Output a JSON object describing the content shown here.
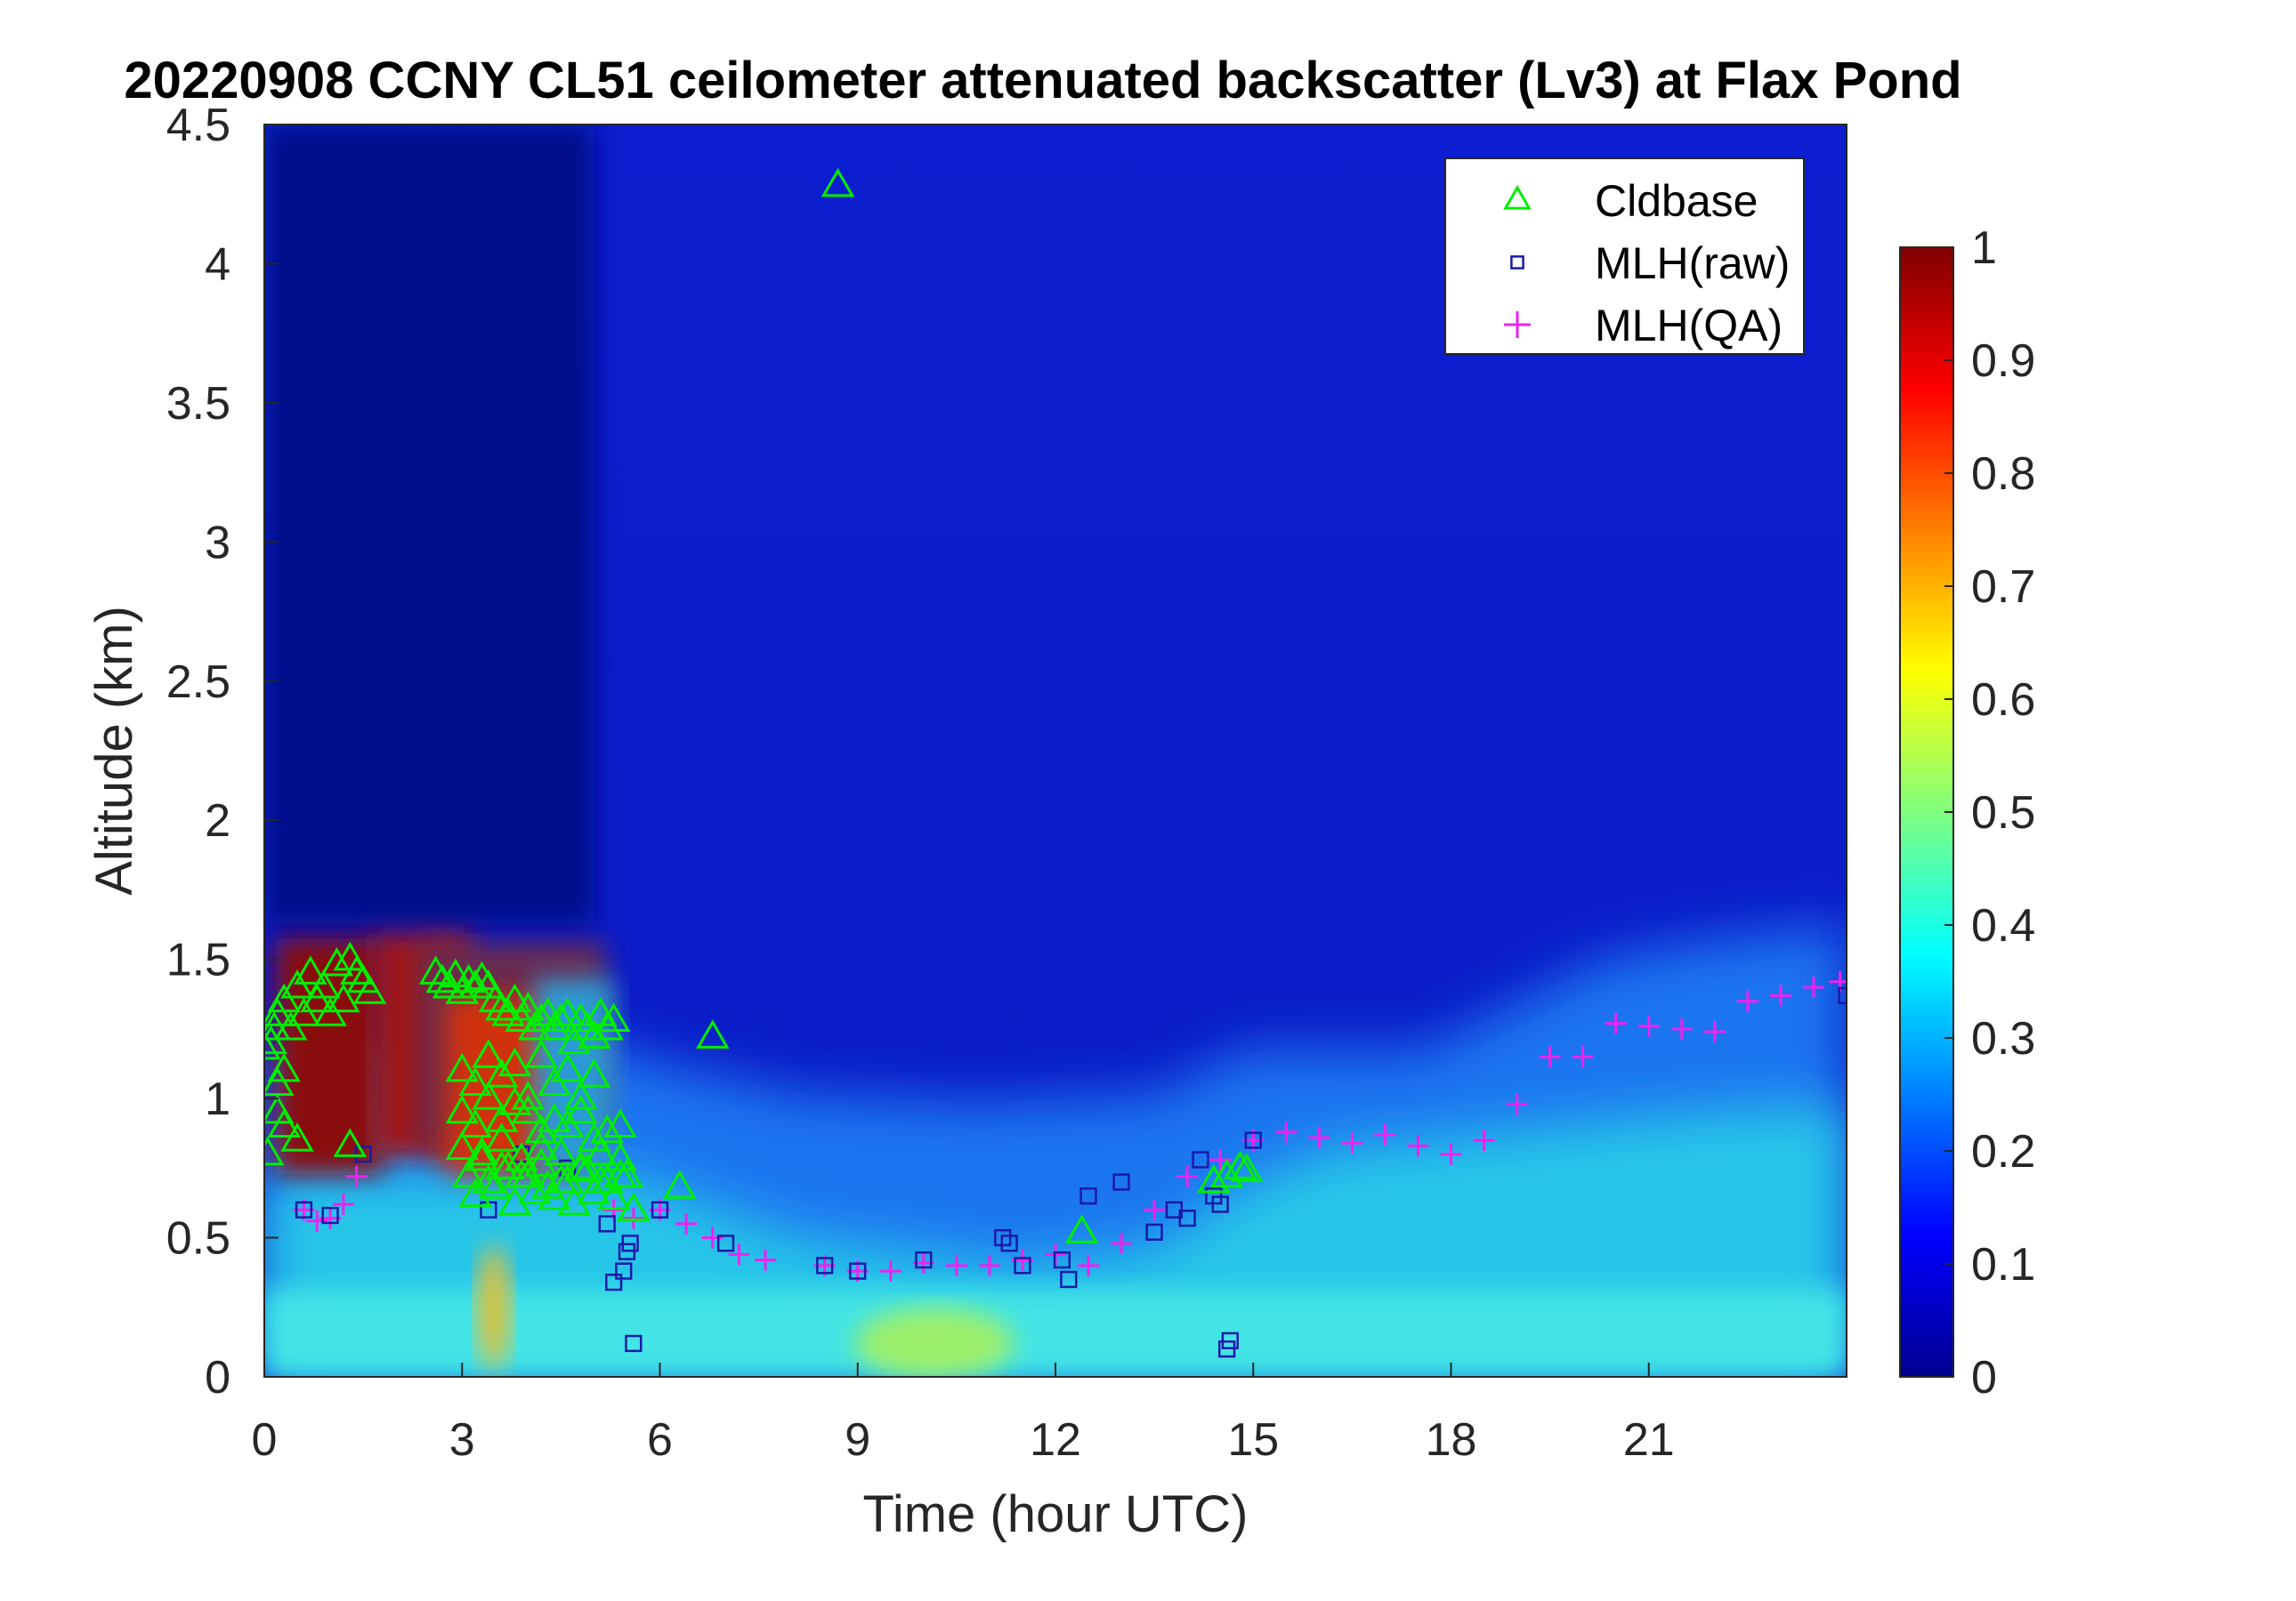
{
  "chart_data": {
    "type": "heatmap",
    "title": "20220908 CCNY CL51 ceilometer attenuated backscatter (Lv3) at Flax Pond",
    "xlabel": "Time (hour UTC)",
    "ylabel": "Altitude (km)",
    "xlim": [
      0,
      24
    ],
    "ylim": [
      0,
      4.5
    ],
    "xticks": [
      0,
      3,
      6,
      9,
      12,
      15,
      18,
      21
    ],
    "xtick_labels": [
      "0",
      "3",
      "6",
      "9",
      "12",
      "15",
      "18",
      "21"
    ],
    "yticks": [
      0,
      0.5,
      1,
      1.5,
      2,
      2.5,
      3,
      3.5,
      4,
      4.5
    ],
    "ytick_labels": [
      "0",
      "0.5",
      "1",
      "1.5",
      "2",
      "2.5",
      "3",
      "3.5",
      "4",
      "4.5"
    ],
    "colorbar": {
      "colormap": "jet",
      "range": [
        0,
        1
      ],
      "ticks": [
        0,
        0.1,
        0.2,
        0.3,
        0.4,
        0.5,
        0.6,
        0.7,
        0.8,
        0.9,
        1
      ],
      "tick_labels": [
        "0",
        "0.1",
        "0.2",
        "0.3",
        "0.4",
        "0.5",
        "0.6",
        "0.7",
        "0.8",
        "0.9",
        "1"
      ]
    },
    "legend": {
      "placement": "top-right",
      "entries": [
        {
          "label": "Cldbase",
          "marker": "triangle",
          "color": "#00ee00"
        },
        {
          "label": "MLH(raw)",
          "marker": "square",
          "color": "#1a1aa8"
        },
        {
          "label": "MLH(QA)",
          "marker": "plus",
          "color": "#ee22ee"
        }
      ]
    },
    "series": [
      {
        "name": "MLH(QA)",
        "x": [
          0.6,
          0.8,
          1.0,
          1.2,
          1.4,
          5.3,
          5.6,
          6.0,
          6.4,
          6.8,
          7.2,
          7.6,
          8.5,
          9.0,
          9.5,
          10.0,
          10.5,
          11.0,
          11.5,
          12.0,
          12.5,
          13.0,
          13.5,
          14.0,
          14.5,
          15.0,
          15.5,
          16.0,
          16.5,
          17.0,
          17.5,
          18.0,
          18.5,
          19.0,
          19.5,
          20.0,
          20.5,
          21.0,
          21.5,
          22.0,
          22.5,
          23.0,
          23.5,
          23.9
        ],
        "y": [
          0.6,
          0.56,
          0.57,
          0.62,
          0.72,
          0.6,
          0.57,
          0.6,
          0.55,
          0.5,
          0.44,
          0.42,
          0.4,
          0.38,
          0.38,
          0.41,
          0.4,
          0.4,
          0.42,
          0.44,
          0.4,
          0.48,
          0.6,
          0.72,
          0.78,
          0.85,
          0.88,
          0.86,
          0.84,
          0.87,
          0.83,
          0.8,
          0.85,
          0.98,
          1.15,
          1.15,
          1.27,
          1.26,
          1.25,
          1.24,
          1.35,
          1.37,
          1.4,
          1.42
        ]
      },
      {
        "name": "MLH(raw)",
        "x": [
          0.6,
          1.0,
          1.5,
          3.4,
          3.9,
          4.6,
          5.2,
          5.3,
          5.45,
          5.5,
          5.55,
          5.6,
          6.0,
          7.0,
          8.5,
          9.0,
          10.0,
          11.2,
          11.3,
          11.5,
          12.1,
          12.2,
          12.5,
          13.0,
          13.5,
          13.8,
          14.0,
          14.2,
          14.4,
          14.5,
          14.6,
          14.65,
          15.0,
          24.0
        ],
        "y": [
          0.6,
          0.58,
          0.8,
          0.6,
          0.8,
          0.75,
          0.55,
          0.34,
          0.38,
          0.45,
          0.48,
          0.12,
          0.6,
          0.48,
          0.4,
          0.38,
          0.42,
          0.5,
          0.48,
          0.4,
          0.42,
          0.35,
          0.65,
          0.7,
          0.52,
          0.6,
          0.57,
          0.78,
          0.65,
          0.62,
          0.1,
          0.13,
          0.85,
          1.37
        ]
      },
      {
        "name": "Cldbase",
        "x": [
          0.0,
          0.05,
          0.1,
          0.15,
          0.2,
          0.3,
          0.4,
          0.5,
          0.6,
          0.7,
          0.8,
          0.9,
          1.0,
          1.1,
          1.2,
          1.3,
          1.4,
          1.5,
          1.6,
          0.2,
          0.3,
          0.5,
          0.2,
          0.3,
          1.3,
          2.6,
          2.7,
          2.8,
          2.9,
          3.0,
          3.1,
          3.2,
          3.3,
          3.4,
          3.5,
          3.6,
          3.7,
          3.8,
          3.9,
          4.0,
          4.1,
          4.2,
          4.3,
          4.4,
          4.5,
          4.6,
          4.7,
          4.8,
          4.9,
          5.0,
          5.1,
          5.2,
          5.3,
          3.0,
          3.2,
          3.4,
          3.6,
          3.8,
          4.0,
          4.2,
          4.4,
          4.6,
          4.8,
          5.0,
          3.0,
          3.2,
          3.4,
          3.6,
          3.8,
          4.0,
          4.2,
          4.4,
          4.6,
          4.8,
          5.0,
          5.2,
          5.4,
          3.0,
          3.3,
          3.6,
          3.9,
          4.2,
          4.5,
          4.8,
          5.1,
          5.4,
          3.1,
          3.4,
          3.7,
          4.0,
          4.3,
          4.6,
          4.9,
          5.2,
          5.5,
          3.2,
          3.5,
          3.8,
          4.1,
          4.4,
          4.7,
          5.0,
          5.3,
          5.6,
          3.3,
          3.6,
          3.9,
          4.2,
          4.5,
          4.8,
          5.1,
          5.4,
          6.3,
          6.8,
          8.7,
          12.4,
          14.4,
          14.6,
          14.8,
          14.9
        ],
        "y": [
          1.18,
          0.8,
          1.2,
          1.25,
          1.3,
          1.35,
          1.25,
          1.4,
          1.3,
          1.45,
          1.35,
          1.4,
          1.3,
          1.48,
          1.35,
          1.5,
          1.45,
          1.42,
          1.38,
          0.95,
          0.9,
          0.85,
          1.05,
          1.1,
          0.83,
          1.45,
          1.42,
          1.4,
          1.44,
          1.38,
          1.42,
          1.4,
          1.43,
          1.4,
          1.35,
          1.32,
          1.3,
          1.35,
          1.28,
          1.32,
          1.25,
          1.28,
          1.3,
          1.25,
          1.28,
          1.3,
          1.2,
          1.28,
          1.25,
          1.22,
          1.3,
          1.25,
          1.28,
          1.1,
          1.05,
          1.15,
          1.08,
          1.12,
          1.0,
          1.15,
          1.05,
          1.1,
          1.0,
          1.08,
          0.95,
          0.9,
          1.0,
          0.92,
          0.98,
          0.95,
          0.88,
          0.92,
          0.9,
          0.95,
          0.85,
          0.88,
          0.9,
          0.82,
          0.8,
          0.85,
          0.78,
          0.82,
          0.8,
          0.75,
          0.8,
          0.78,
          0.72,
          0.7,
          0.75,
          0.72,
          0.68,
          0.7,
          0.74,
          0.7,
          0.72,
          0.65,
          0.68,
          0.62,
          0.66,
          0.64,
          0.62,
          0.66,
          0.64,
          0.6,
          0.78,
          0.75,
          0.72,
          0.76,
          0.7,
          0.74,
          0.7,
          0.72,
          0.68,
          1.22,
          4.28,
          0.52,
          0.7,
          0.72,
          0.75,
          0.74
        ]
      }
    ]
  }
}
